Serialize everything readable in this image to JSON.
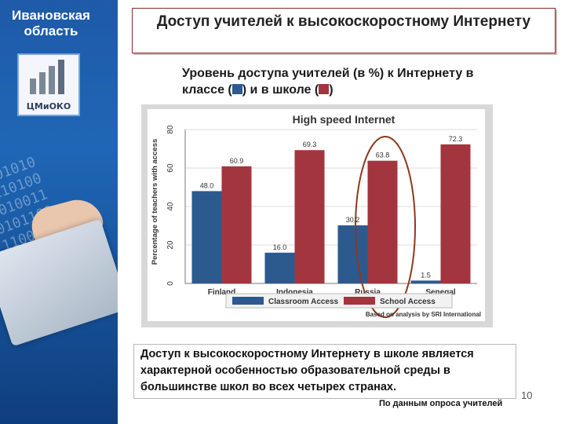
{
  "sidebar": {
    "region": "Ивановская область",
    "logo_text": "ЦМиОКО"
  },
  "header": {
    "title": "Доступ учителей к высокоскоростному Интернету"
  },
  "subtitle": {
    "line1": "Уровень доступа учителей (в %) к Интернету в",
    "line2_a": "классе (",
    "line2_b": ") и в школе (",
    "line2_c": ")"
  },
  "description": "Доступ к высокоскоростному Интернету в школе является характерной особенностью образовательной среды в большинстве школ во всех четырех странах.",
  "source": "По данным опроса учителей",
  "page_number": "10",
  "colors": {
    "classroom": "#2d5a8e",
    "school": "#a3353e",
    "circle": "#8b3a1e"
  },
  "chart_data": {
    "type": "bar",
    "title": "High speed Internet",
    "ylabel": "Percentage of teachers with access",
    "ylim": [
      0,
      80
    ],
    "yticks": [
      "0",
      "20",
      "40",
      "60",
      "80"
    ],
    "categories": [
      "Finland",
      "Indonesia",
      "Russia",
      "Senegal"
    ],
    "series": [
      {
        "name": "Classroom Access",
        "values": [
          48.0,
          16.0,
          30.2,
          1.5
        ],
        "labels": [
          "48.0",
          "16.0",
          "30.2",
          "1.5"
        ]
      },
      {
        "name": "School Access",
        "values": [
          60.9,
          69.3,
          63.8,
          72.3
        ],
        "labels": [
          "60.9",
          "69.3",
          "63.8",
          "72.3"
        ]
      }
    ],
    "note": "Based on analysis by SRI International",
    "highlight": "Russia"
  }
}
